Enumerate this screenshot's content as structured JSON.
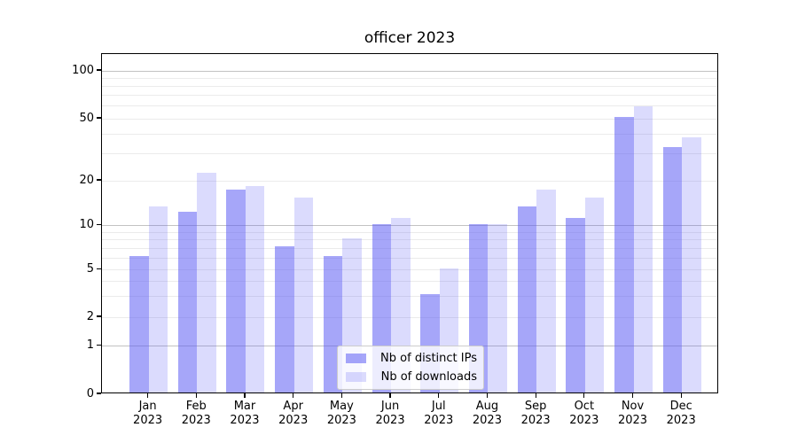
{
  "title": "officer 2023",
  "chart_data": {
    "type": "bar",
    "title": "officer 2023",
    "categories": [
      "Jan 2023",
      "Feb 2023",
      "Mar 2023",
      "Apr 2023",
      "May 2023",
      "Jun 2023",
      "Jul 2023",
      "Aug 2023",
      "Sep 2023",
      "Oct 2023",
      "Nov 2023",
      "Dec 2023"
    ],
    "series": [
      {
        "name": "Nb of distinct IPs",
        "color": "rgba(93,93,244,0.55)",
        "values": [
          6,
          12,
          17,
          7,
          6,
          10,
          3,
          10,
          13,
          11,
          50,
          32
        ]
      },
      {
        "name": "Nb of downloads",
        "color": "rgba(93,93,244,0.22)",
        "values": [
          13,
          22,
          18,
          15,
          8,
          11,
          5,
          10,
          17,
          15,
          58,
          37
        ]
      }
    ],
    "xlabel": "",
    "ylabel": "",
    "yscale": "symlog",
    "yticks": [
      0,
      1,
      2,
      5,
      10,
      20,
      50,
      100
    ],
    "minor_gridlines": [
      2,
      3,
      4,
      5,
      6,
      7,
      8,
      9,
      20,
      30,
      40,
      50,
      60,
      70,
      80,
      90
    ],
    "major_gridlines": [
      1,
      10,
      100
    ],
    "ylim": [
      0,
      140
    ],
    "grid": "both",
    "legend_position": "lower center",
    "colors": {
      "grid_major": "#c2c2c2",
      "grid_minor": "#ebebeb",
      "spine": "#000000",
      "text": "#000000",
      "legend_border": "#cccccc",
      "legend_bg": "rgba(255,255,255,0.8)"
    }
  }
}
